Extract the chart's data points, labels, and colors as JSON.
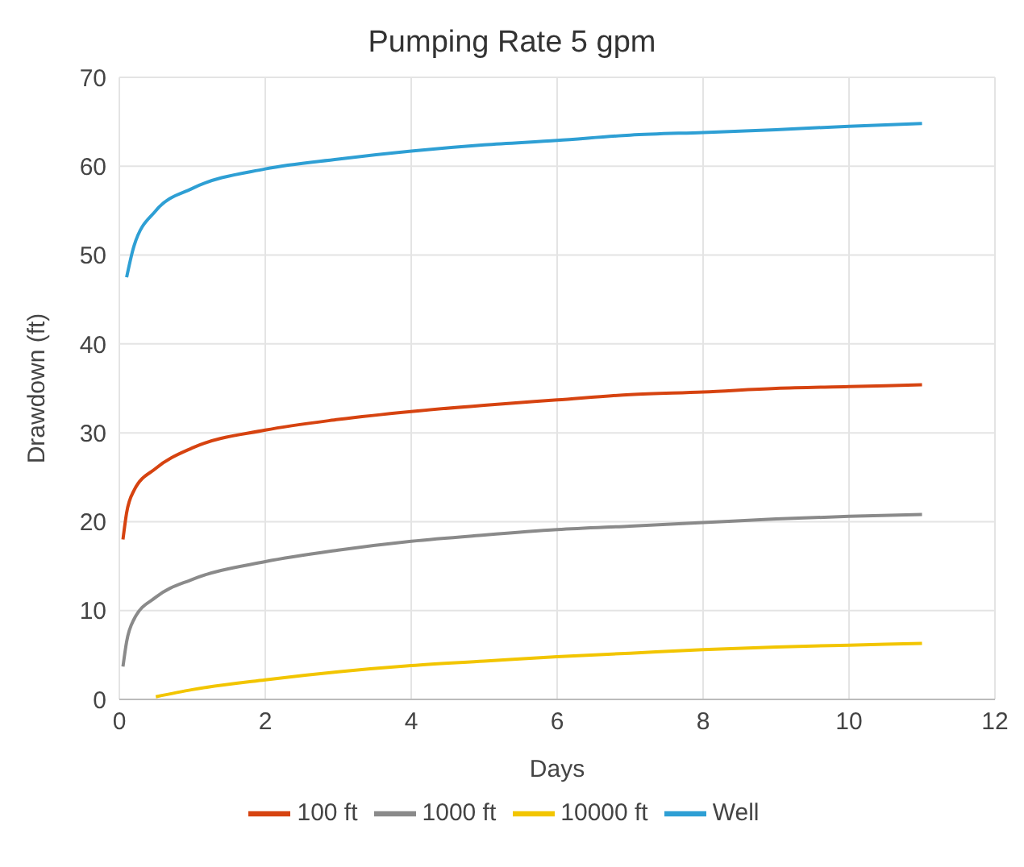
{
  "chart_data": {
    "type": "line",
    "title": "Pumping Rate 5 gpm",
    "xlabel": "Days",
    "ylabel": "Drawdown (ft)",
    "xlim": [
      0,
      12
    ],
    "xticks": [
      0,
      2,
      4,
      6,
      8,
      10,
      12
    ],
    "ylim": [
      0,
      70
    ],
    "yticks": [
      0,
      10,
      20,
      30,
      40,
      50,
      60,
      70
    ],
    "grid": true,
    "legend": "bottom",
    "marker": "none",
    "line_style": "solid",
    "series": [
      {
        "name": "Well",
        "color": "#2e9fd4",
        "x": [
          0.1,
          0.2,
          0.5,
          1,
          2,
          3,
          4,
          5,
          6,
          7,
          8,
          9,
          10,
          11
        ],
        "values": [
          47.5,
          51,
          55,
          57.5,
          59.7,
          60.8,
          61.7,
          62.4,
          62.9,
          63.5,
          63.8,
          64.1,
          64.5,
          64.8
        ]
      },
      {
        "name": "100 ft",
        "color": "#d64310",
        "x": [
          0.05,
          0.1,
          0.2,
          0.5,
          1,
          2,
          3,
          4,
          5,
          6,
          7,
          8,
          9,
          10,
          11
        ],
        "values": [
          18,
          21,
          23.5,
          26,
          28.3,
          30.3,
          31.5,
          32.4,
          33.1,
          33.7,
          34.3,
          34.6,
          35,
          35.2,
          35.4
        ]
      },
      {
        "name": "1000 ft",
        "color": "#8a8a8a",
        "x": [
          0.05,
          0.1,
          0.2,
          0.5,
          1,
          2,
          3,
          4,
          5,
          6,
          7,
          8,
          9,
          10,
          11
        ],
        "values": [
          3.7,
          6.5,
          9,
          11.5,
          13.5,
          15.5,
          16.8,
          17.8,
          18.5,
          19.1,
          19.5,
          19.9,
          20.3,
          20.6,
          20.8
        ]
      },
      {
        "name": "10000 ft",
        "color": "#f2c500",
        "x": [
          0.5,
          1,
          2,
          3,
          4,
          5,
          6,
          7,
          8,
          9,
          10,
          11
        ],
        "values": [
          0.3,
          1.1,
          2.2,
          3.1,
          3.8,
          4.3,
          4.8,
          5.2,
          5.6,
          5.9,
          6.1,
          6.3
        ]
      }
    ]
  }
}
